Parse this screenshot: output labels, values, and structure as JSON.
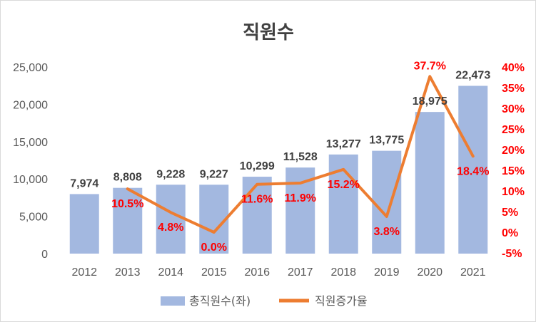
{
  "colors": {
    "bar": "#a3b8e0",
    "line": "#ed7d31",
    "bar_label": "#404040",
    "line_label": "#ff0000",
    "axis_text": "#595959",
    "right_axis_text": "#ff0000"
  },
  "chart_data": {
    "type": "bar+line",
    "title": "직원수",
    "categories": [
      "2012",
      "2013",
      "2014",
      "2015",
      "2016",
      "2017",
      "2018",
      "2019",
      "2020",
      "2021"
    ],
    "series": [
      {
        "name": "총직원수(좌)",
        "type": "bar",
        "axis": "left",
        "values": [
          7974,
          8808,
          9228,
          9227,
          10299,
          11528,
          13277,
          13775,
          18975,
          22473
        ],
        "labels": [
          "7,974",
          "8,808",
          "9,228",
          "9,227",
          "10,299",
          "11,528",
          "13,277",
          "13,775",
          "18,975",
          "22,473"
        ]
      },
      {
        "name": "직원증가율",
        "type": "line",
        "axis": "right",
        "values": [
          null,
          10.5,
          4.8,
          0.0,
          11.6,
          11.9,
          15.2,
          3.8,
          37.7,
          18.4
        ],
        "labels": [
          "",
          "10.5%",
          "4.8%",
          "0.0%",
          "11.6%",
          "11.9%",
          "15.2%",
          "3.8%",
          "37.7%",
          "18.4%"
        ]
      }
    ],
    "left_axis": {
      "min": 0,
      "max": 25000,
      "ticks": [
        0,
        5000,
        10000,
        15000,
        20000,
        25000
      ],
      "tick_labels": [
        "0",
        "5,000",
        "10,000",
        "15,000",
        "20,000",
        "25,000"
      ]
    },
    "right_axis": {
      "min": -5,
      "max": 40,
      "ticks": [
        -5,
        0,
        5,
        10,
        15,
        20,
        25,
        30,
        35,
        40
      ],
      "tick_labels": [
        "-5%",
        "0%",
        "5%",
        "10%",
        "15%",
        "20%",
        "25%",
        "30%",
        "35%",
        "40%"
      ]
    },
    "grid": false,
    "legend": "bottom"
  }
}
